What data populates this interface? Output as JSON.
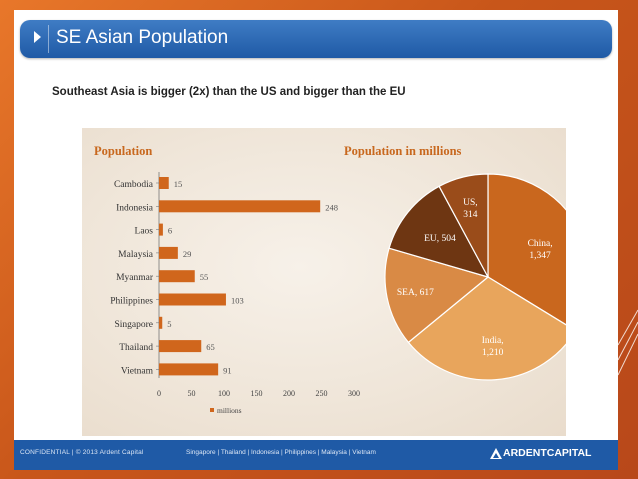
{
  "header": {
    "title": "SE Asian Population"
  },
  "subtitle": "Southeast Asia is bigger (2x) than the US and bigger than the EU",
  "footer": {
    "left": "CONFIDENTIAL  |  © 2013 Ardent Capital",
    "countries": "Singapore  |  Thailand  |  Indonesia  |  Philippines  |  Malaysia  |  Vietnam",
    "logo": "ARDENTCAPITAL"
  },
  "colors": {
    "bar": "#d0661c",
    "china": "#c9671e",
    "india": "#e8a55c",
    "sea": "#d98a45",
    "eu": "#6e3612",
    "us": "#9a4c1a"
  },
  "chart_data": [
    {
      "type": "bar",
      "orientation": "horizontal",
      "title": "Population",
      "categories": [
        "Cambodia",
        "Indonesia",
        "Laos",
        "Malaysia",
        "Myanmar",
        "Philippines",
        "Singapore",
        "Thailand",
        "Vietnam"
      ],
      "values": [
        15,
        248,
        6,
        29,
        55,
        103,
        5,
        65,
        91
      ],
      "xticks": [
        "0",
        "50",
        "100",
        "150",
        "200",
        "250",
        "300"
      ],
      "xlim": [
        0,
        300
      ],
      "legend": "millions",
      "legend_position": "bottom"
    },
    {
      "type": "pie",
      "title": "Population in millions",
      "slices": [
        {
          "label": "China,",
          "value_text": "1,347",
          "value": 1347
        },
        {
          "label": "India,",
          "value_text": "1,210",
          "value": 1210
        },
        {
          "label": "SEA, 617",
          "value_text": "",
          "value": 617
        },
        {
          "label": "EU, 504",
          "value_text": "",
          "value": 504
        },
        {
          "label": "US,",
          "value_text": "314",
          "value": 314
        }
      ]
    }
  ]
}
